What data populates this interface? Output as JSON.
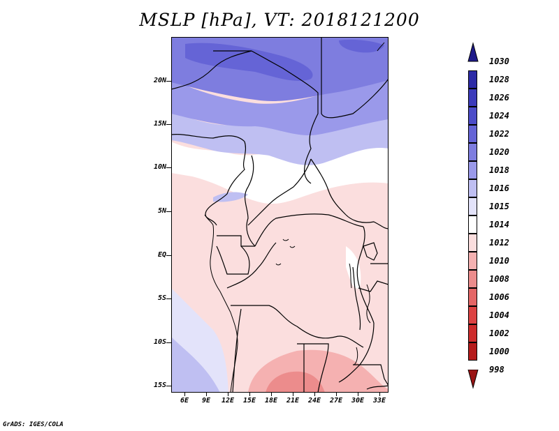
{
  "title": "MSLP [hPa], VT: 2018121200",
  "footer": "GrADS: IGES/COLA",
  "lat_labels": [
    "20N",
    "15N",
    "10N",
    "5N",
    "EQ",
    "5S",
    "10S",
    "15S"
  ],
  "lon_labels": [
    "6E",
    "9E",
    "12E",
    "15E",
    "18E",
    "21E",
    "24E",
    "27E",
    "30E",
    "33E"
  ],
  "colorbar": {
    "values": [
      "1030",
      "1028",
      "1026",
      "1024",
      "1022",
      "1020",
      "1018",
      "1016",
      "1015",
      "1014",
      "1012",
      "1010",
      "1008",
      "1006",
      "1004",
      "1002",
      "1000",
      "998"
    ],
    "colors": [
      "#1e1a8a",
      "#2c2aa6",
      "#3c3bbb",
      "#4c4cc8",
      "#6564d6",
      "#7e7ddf",
      "#9a99ea",
      "#bfbff2",
      "#e3e3fa",
      "#ffffff",
      "#fbdede",
      "#f5b1b1",
      "#ec8c8c",
      "#e46666",
      "#dc4343",
      "#cd2c2c",
      "#b51b1b",
      "#9a1414"
    ]
  }
}
